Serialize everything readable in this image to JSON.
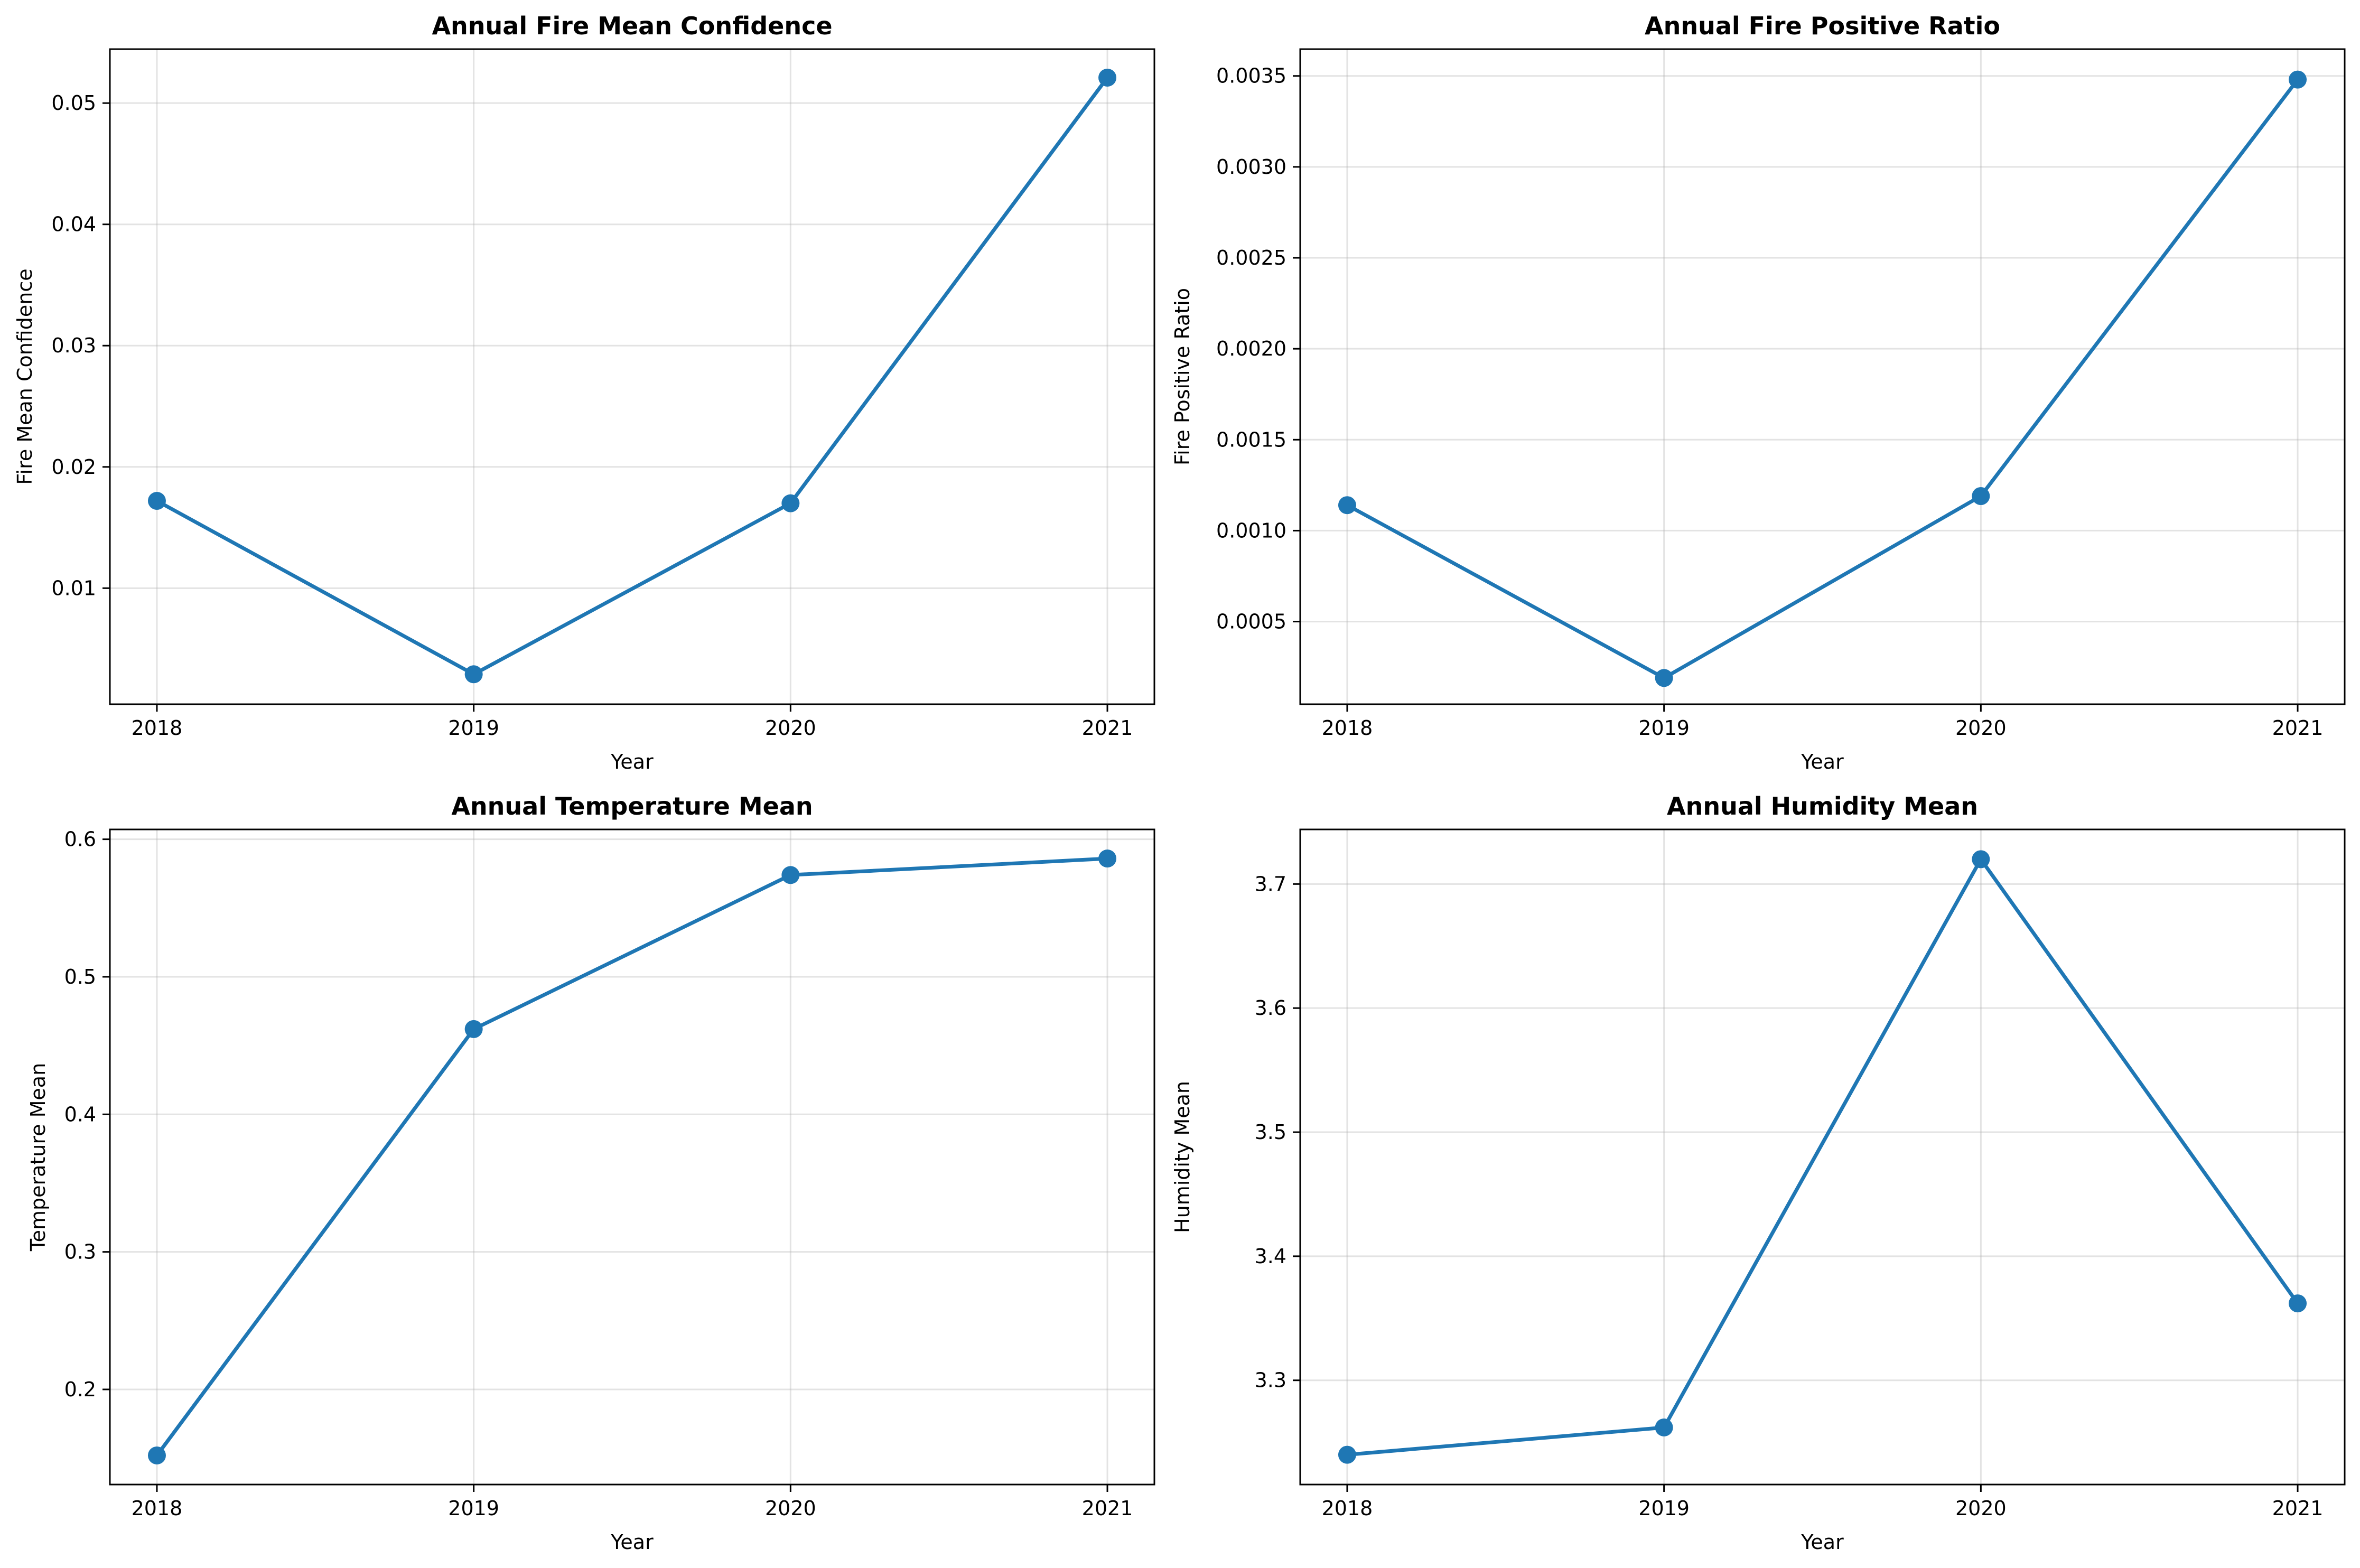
{
  "chart_data": [
    {
      "type": "line",
      "title": "Annual Fire Mean Confidence",
      "xlabel": "Year",
      "ylabel": "Fire Mean Confidence",
      "x": [
        2018,
        2019,
        2020,
        2021
      ],
      "x_ticks": [
        "2018",
        "2019",
        "2020",
        "2021"
      ],
      "y_ticks": [
        "0.01",
        "0.02",
        "0.03",
        "0.04",
        "0.05"
      ],
      "y_tick_values": [
        0.01,
        0.02,
        0.03,
        0.04,
        0.05
      ],
      "ylim": [
        0.00043,
        0.05445
      ],
      "series": [
        {
          "values": [
            0.0172,
            0.0029,
            0.017,
            0.0521
          ],
          "color": "#1f77b4"
        }
      ],
      "grid": true,
      "marker": "circle"
    },
    {
      "type": "line",
      "title": "Annual Fire Positive Ratio",
      "xlabel": "Year",
      "ylabel": "Fire Positive Ratio",
      "x": [
        2018,
        2019,
        2020,
        2021
      ],
      "x_ticks": [
        "2018",
        "2019",
        "2020",
        "2021"
      ],
      "y_ticks": [
        "0.0005",
        "0.0010",
        "0.0015",
        "0.0020",
        "0.0025",
        "0.0030",
        "0.0035"
      ],
      "y_tick_values": [
        0.0005,
        0.001,
        0.0015,
        0.002,
        0.0025,
        0.003,
        0.0035
      ],
      "ylim": [
        4.56e-05,
        0.0036474
      ],
      "series": [
        {
          "values": [
            0.00114,
            0.00019,
            0.00119,
            0.00348
          ],
          "color": "#1f77b4"
        }
      ],
      "grid": true,
      "marker": "circle"
    },
    {
      "type": "line",
      "title": "Annual Temperature Mean",
      "xlabel": "Year",
      "ylabel": "Temperature Mean",
      "x": [
        2018,
        2019,
        2020,
        2021
      ],
      "x_ticks": [
        "2018",
        "2019",
        "2020",
        "2021"
      ],
      "y_ticks": [
        "0.2",
        "0.3",
        "0.4",
        "0.5",
        "0.6"
      ],
      "y_tick_values": [
        0.2,
        0.3,
        0.4,
        0.5,
        0.6
      ],
      "ylim": [
        0.13085,
        0.60715
      ],
      "series": [
        {
          "values": [
            0.152,
            0.462,
            0.574,
            0.586
          ],
          "color": "#1f77b4"
        }
      ],
      "grid": true,
      "marker": "circle"
    },
    {
      "type": "line",
      "title": "Annual Humidity Mean",
      "xlabel": "Year",
      "ylabel": "Humidity Mean",
      "x": [
        2018,
        2019,
        2020,
        2021
      ],
      "x_ticks": [
        "2018",
        "2019",
        "2020",
        "2021"
      ],
      "y_ticks": [
        "3.3",
        "3.4",
        "3.5",
        "3.6",
        "3.7"
      ],
      "y_tick_values": [
        3.3,
        3.4,
        3.5,
        3.6,
        3.7
      ],
      "ylim": [
        3.216,
        3.744
      ],
      "series": [
        {
          "values": [
            3.24,
            3.262,
            3.72,
            3.362
          ],
          "color": "#1f77b4"
        }
      ],
      "grid": true,
      "marker": "circle"
    }
  ]
}
